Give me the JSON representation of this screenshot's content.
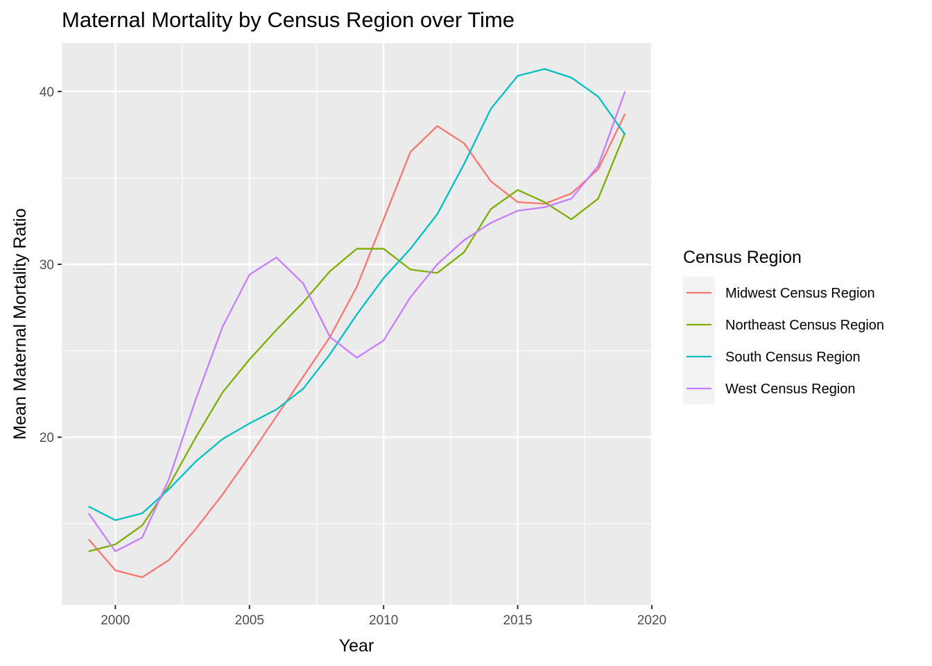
{
  "chart_data": {
    "type": "line",
    "title": "Maternal Mortality by Census Region over Time",
    "xlabel": "Year",
    "ylabel": "Mean Maternal Mortality Ratio",
    "xlim": [
      1998,
      2020
    ],
    "ylim": [
      10.3,
      42.8
    ],
    "xticks": [
      2000,
      2005,
      2010,
      2015,
      2020
    ],
    "yticks": [
      20,
      30,
      40
    ],
    "grid": true,
    "legend": {
      "title": "Census Region",
      "position": "right"
    },
    "x": [
      1999,
      2000,
      2001,
      2002,
      2003,
      2004,
      2005,
      2006,
      2007,
      2008,
      2009,
      2010,
      2011,
      2012,
      2013,
      2014,
      2015,
      2016,
      2017,
      2018,
      2019
    ],
    "series": [
      {
        "name": "Midwest Census Region",
        "color": "#F8766D",
        "values": [
          14.1,
          12.3,
          11.9,
          12.9,
          14.7,
          16.7,
          18.9,
          21.2,
          23.5,
          25.8,
          28.7,
          32.6,
          36.5,
          38.0,
          37.0,
          34.8,
          33.6,
          33.5,
          34.1,
          35.5,
          38.7
        ]
      },
      {
        "name": "Northeast Census Region",
        "color": "#7CAE00",
        "values": [
          13.4,
          13.8,
          14.9,
          17.2,
          20.0,
          22.6,
          24.5,
          26.2,
          27.8,
          29.6,
          30.9,
          30.9,
          29.7,
          29.5,
          30.7,
          33.2,
          34.3,
          33.6,
          32.6,
          33.8,
          37.6
        ]
      },
      {
        "name": "South Census Region",
        "color": "#00BFC4",
        "values": [
          16.0,
          15.2,
          15.6,
          17.0,
          18.6,
          19.9,
          20.8,
          21.6,
          22.8,
          24.8,
          27.1,
          29.2,
          30.9,
          32.9,
          35.8,
          39.0,
          40.9,
          41.3,
          40.8,
          39.7,
          37.5
        ]
      },
      {
        "name": "West Census Region",
        "color": "#C77CFF",
        "values": [
          15.6,
          13.4,
          14.2,
          17.6,
          22.2,
          26.4,
          29.4,
          30.4,
          28.9,
          25.8,
          24.6,
          25.6,
          28.1,
          30.0,
          31.4,
          32.4,
          33.1,
          33.3,
          33.8,
          35.7,
          40.0
        ]
      }
    ]
  }
}
